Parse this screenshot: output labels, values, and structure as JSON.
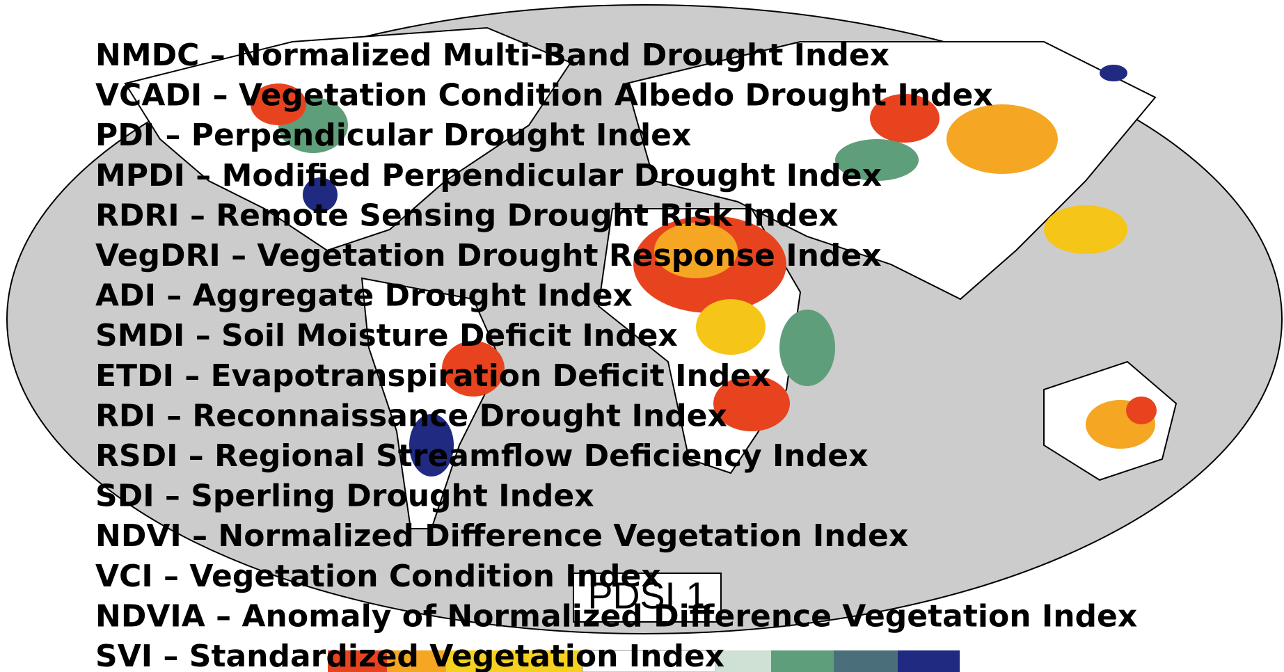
{
  "slide": {
    "items": [
      "NMDC – Normalized Multi-Band Drought Index",
      "VCADI – Vegetation Condition Albedo Drought Index",
      "PDI – Perpendicular Drought Index",
      "MPDI – Modified Perpendicular Drought Index",
      "RDRI – Remote Sensing Drought Risk Index",
      "VegDRI – Vegetation Drought Response Index",
      "ADI – Aggregate Drought Index",
      "SMDI – Soil Moisture Deficit Index",
      "ETDI – Evapotranspiration Deficit Index",
      "RDI – Reconnaissance Drought Index",
      "RSDI – Regional Streamflow Deficiency Index",
      "SDI – Sperling Drought Index",
      "NDVI – Normalized Difference Vegetation Index",
      "VCI – Vegetation Condition Index",
      "NDVIA – Anomaly of Normalized Difference Vegetation Index",
      "SVI – Standardized Vegetation Index"
    ],
    "map_label": "PDSI 1"
  }
}
